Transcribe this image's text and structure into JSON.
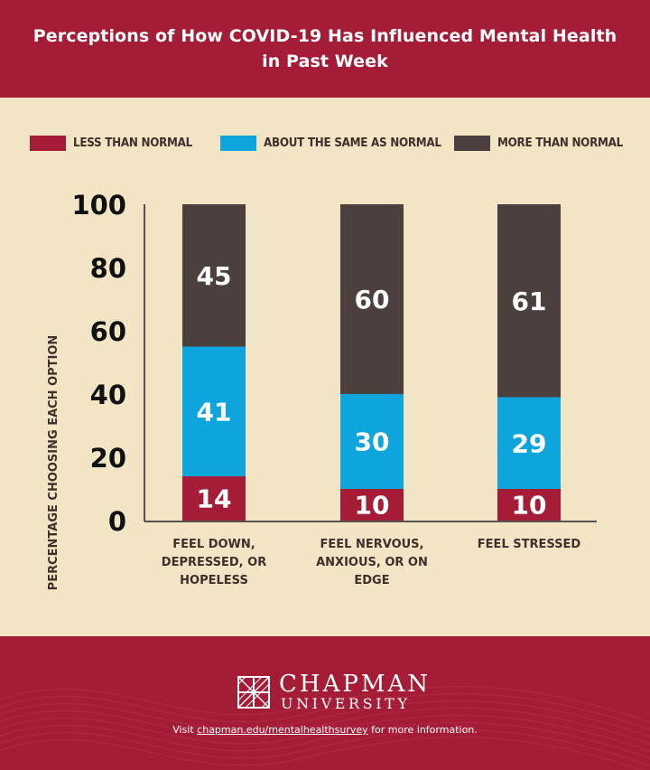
{
  "header": {
    "title_line1": "Perceptions of How COVID-19 Has Influenced Mental Health",
    "title_line2": "in Past Week"
  },
  "colors": {
    "less": "#a51c37",
    "same": "#0ea5dd",
    "more": "#4b403d",
    "background": "#f1e5c6",
    "text": "#3d302a"
  },
  "chart_data": {
    "type": "bar",
    "stacked": true,
    "title": "Perceptions of How COVID-19 Has Influenced Mental Health in Past Week",
    "ylabel": "PERCENTAGE CHOOSING EACH OPTION",
    "xlabel": "",
    "ylim": [
      0,
      100
    ],
    "yticks": [
      0,
      20,
      40,
      60,
      80,
      100
    ],
    "grid": false,
    "legend_position": "top",
    "categories": [
      [
        "FEEL DOWN,",
        "DEPRESSED, OR",
        "HOPELESS"
      ],
      [
        "FEEL NERVOUS,",
        "ANXIOUS, OR ON",
        "EDGE"
      ],
      [
        "FEEL STRESSED"
      ]
    ],
    "series": [
      {
        "name": "LESS THAN NORMAL",
        "color": "#a51c37",
        "values": [
          14,
          10,
          10
        ]
      },
      {
        "name": "ABOUT THE SAME AS NORMAL",
        "color": "#0ea5dd",
        "values": [
          41,
          30,
          29
        ]
      },
      {
        "name": "MORE THAN NORMAL",
        "color": "#4b403d",
        "values": [
          45,
          60,
          61
        ]
      }
    ]
  },
  "footer": {
    "logo_line1": "CHAPMAN",
    "logo_line2": "UNIVERSITY",
    "visit_prefix": "Visit ",
    "visit_link": "chapman.edu/mentalhealthsurvey",
    "visit_suffix": " for more information."
  }
}
